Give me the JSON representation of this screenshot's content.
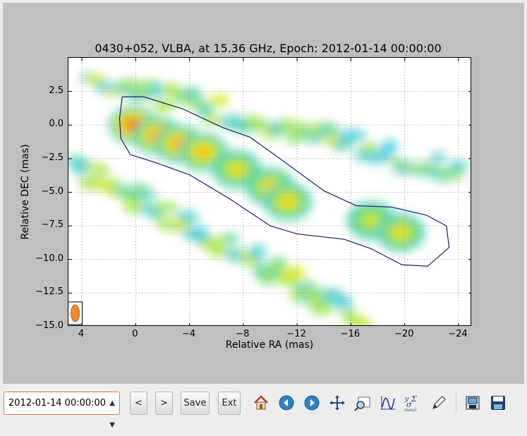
{
  "window": {
    "plot_title": "0430+052, VLBA, at 15.36 GHz, Epoch: 2012-01-14 00:00:00"
  },
  "chart_data": {
    "type": "heatmap",
    "title": "0430+052, VLBA, at 15.36 GHz, Epoch: 2012-01-14 00:00:00",
    "xlabel": "Relative RA (mas)",
    "ylabel": "Relative DEC (mas)",
    "xlim": [
      5,
      -25
    ],
    "ylim": [
      -15.0,
      5.0
    ],
    "x_ticks": [
      "4",
      "0",
      "−4",
      "−8",
      "−12",
      "−16",
      "−20",
      "−24"
    ],
    "y_ticks": [
      "2.5",
      "0.0",
      "−2.5",
      "−5.0",
      "−7.5",
      "−10.0",
      "−12.5",
      "−15.0"
    ],
    "x_tick_values": [
      4,
      0,
      -4,
      -8,
      -12,
      -16,
      -20,
      -24
    ],
    "y_tick_values": [
      2.5,
      0.0,
      -2.5,
      -5.0,
      -7.5,
      -10.0,
      -12.5,
      -15.0
    ],
    "grid": true,
    "colormap": "jet",
    "jet_components": [
      {
        "ra": 0.2,
        "dec": 0.0,
        "intensity": 1.0
      },
      {
        "ra": -1.6,
        "dec": -0.8,
        "intensity": 0.85
      },
      {
        "ra": -3.2,
        "dec": -1.4,
        "intensity": 0.8
      },
      {
        "ra": -5.0,
        "dec": -2.0,
        "intensity": 0.72
      },
      {
        "ra": -7.5,
        "dec": -3.3,
        "intensity": 0.55
      },
      {
        "ra": -10.0,
        "dec": -4.6,
        "intensity": 0.6
      },
      {
        "ra": -11.3,
        "dec": -5.7,
        "intensity": 0.62
      },
      {
        "ra": -17.5,
        "dec": -7.1,
        "intensity": 0.45
      },
      {
        "ra": -19.7,
        "dec": -8.0,
        "intensity": 0.55
      }
    ],
    "contour": [
      [
        1.0,
        2.1
      ],
      [
        -0.6,
        2.1
      ],
      [
        -3.5,
        1.2
      ],
      [
        -6.5,
        -0.2
      ],
      [
        -8.5,
        -0.9
      ],
      [
        -11.0,
        -2.7
      ],
      [
        -14.0,
        -4.9
      ],
      [
        -16.4,
        -6.0
      ],
      [
        -19.0,
        -6.1
      ],
      [
        -21.6,
        -6.7
      ],
      [
        -23.1,
        -7.5
      ],
      [
        -23.3,
        -9.1
      ],
      [
        -22.4,
        -9.9
      ],
      [
        -21.7,
        -10.5
      ],
      [
        -19.8,
        -10.4
      ],
      [
        -17.5,
        -9.2
      ],
      [
        -15.5,
        -8.5
      ],
      [
        -12.0,
        -8.1
      ],
      [
        -10.0,
        -7.5
      ],
      [
        -7.0,
        -5.5
      ],
      [
        -4.0,
        -3.7
      ],
      [
        -1.5,
        -2.8
      ],
      [
        0.4,
        -2.2
      ],
      [
        1.1,
        -1.0
      ],
      [
        1.2,
        0.5
      ],
      [
        1.0,
        2.1
      ]
    ],
    "beam": {
      "ra": 4.5,
      "dec": -14.0,
      "color": "#f08a2a"
    },
    "colors": {
      "contour": "#1a1a6e",
      "figure_bg": "#bfbfbf",
      "axes_bg": "#ffffff"
    }
  },
  "toolbar": {
    "epoch_value": "2012-01-14 00:00:00",
    "prev_label": "<",
    "next_label": ">",
    "save_label": "Save",
    "exit_label": "Ext",
    "icons": [
      "home-icon",
      "back-arrow-icon",
      "forward-arrow-icon",
      "pan-icon",
      "zoom-icon",
      "configure-subplots-icon",
      "edit-curves-icon",
      "edit-parameters-icon",
      "save-figure-icon",
      "floppy-disk-icon"
    ]
  }
}
